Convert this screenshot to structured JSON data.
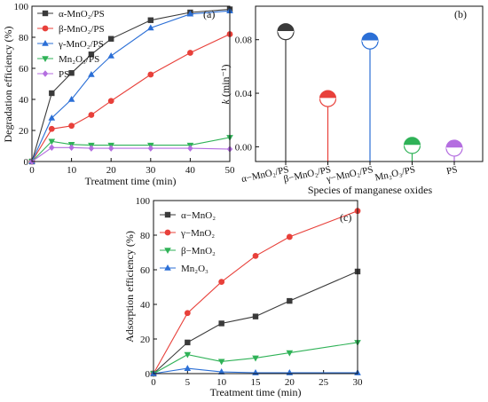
{
  "colors": {
    "black": "#3a3a3a",
    "red": "#e8403a",
    "blue": "#2b6fd6",
    "green": "#2fb257",
    "purple": "#b46ee0",
    "axis": "#111111"
  },
  "chart_data": [
    {
      "id": "a",
      "type": "line",
      "panel_label": "(a)",
      "xlabel": "Treatment time (min)",
      "ylabel": "Degradation efficiency (%)",
      "xlim": [
        0,
        50
      ],
      "ylim": [
        0,
        100
      ],
      "xticks": [
        "0",
        "10",
        "20",
        "30",
        "40",
        "50"
      ],
      "yticks": [
        "0",
        "20",
        "40",
        "60",
        "80",
        "100"
      ],
      "x": [
        0,
        5,
        10,
        15,
        20,
        30,
        40,
        50
      ],
      "legend_position": "top-left",
      "series": [
        {
          "name": "α-MnO₂/PS",
          "color": "#3a3a3a",
          "marker": "square",
          "values": [
            0,
            44,
            57,
            69,
            79,
            91,
            96,
            98
          ]
        },
        {
          "name": "β-MnO₂/PS",
          "color": "#e8403a",
          "marker": "circle",
          "values": [
            0,
            21,
            23,
            30,
            39,
            56,
            70,
            82
          ]
        },
        {
          "name": "γ-MnO₂/PS",
          "color": "#2b6fd6",
          "marker": "triangle-up",
          "values": [
            0,
            28,
            40,
            56,
            68,
            86,
            95,
            97
          ]
        },
        {
          "name": "Mn₂O₃/PS",
          "color": "#2fb257",
          "marker": "triangle-down",
          "values": [
            0,
            13,
            11,
            10.5,
            10.5,
            10.5,
            10.5,
            15.5
          ]
        },
        {
          "name": "PS",
          "color": "#b46ee0",
          "marker": "diamond",
          "values": [
            0,
            9,
            9,
            8.5,
            8.5,
            8.5,
            8.5,
            8
          ]
        }
      ]
    },
    {
      "id": "b",
      "type": "lollipop",
      "panel_label": "(b)",
      "xlabel": "Species of manganese oxides",
      "ylabel_main": "k",
      "ylabel_unit": " (min⁻¹)",
      "ylim": [
        -0.011,
        0.105
      ],
      "yticks": [
        0.0,
        0.04,
        0.08
      ],
      "ytick_labels": [
        "0.00",
        "0.04",
        "0.08"
      ],
      "categories": [
        "α−MnO₂/PS",
        "β−MnO₂/PS",
        "γ−MnO₂/PS",
        "Mn₂O₃/PS",
        "PS"
      ],
      "values": [
        0.086,
        0.036,
        0.079,
        0.001,
        -0.001
      ],
      "colors": [
        "#3a3a3a",
        "#e8403a",
        "#2b6fd6",
        "#2fb257",
        "#b46ee0"
      ]
    },
    {
      "id": "c",
      "type": "line",
      "panel_label": "(c)",
      "xlabel": "Treatment time (min)",
      "ylabel": "Adsorption efficiency (%)",
      "xlim": [
        0,
        30
      ],
      "ylim": [
        0,
        100
      ],
      "xticks": [
        "0",
        "5",
        "10",
        "15",
        "20",
        "25",
        "30"
      ],
      "yticks": [
        "0",
        "20",
        "40",
        "60",
        "80",
        "100"
      ],
      "x": [
        0,
        5,
        10,
        15,
        20,
        30
      ],
      "legend_position": "top-left",
      "series": [
        {
          "name": "α−MnO₂",
          "color": "#3a3a3a",
          "marker": "square",
          "values": [
            0,
            18,
            29,
            33,
            42,
            59
          ]
        },
        {
          "name": "γ−MnO₂",
          "color": "#e8403a",
          "marker": "circle",
          "values": [
            0,
            35,
            53,
            68,
            79,
            94
          ]
        },
        {
          "name": "β−MnO₂",
          "color": "#2fb257",
          "marker": "triangle-down",
          "values": [
            0,
            11,
            7,
            9,
            12,
            18
          ]
        },
        {
          "name": "Mn₂O₃",
          "color": "#2b6fd6",
          "marker": "triangle-up",
          "values": [
            0,
            3,
            1,
            0.5,
            0.5,
            0.5
          ]
        }
      ]
    }
  ]
}
